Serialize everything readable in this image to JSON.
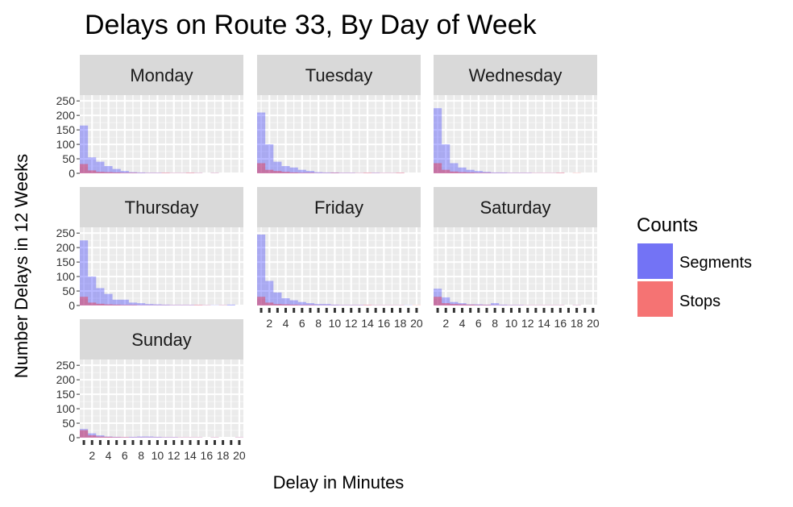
{
  "chart_data": {
    "type": "bar",
    "title": "Delays on Route 33, By Day of Week",
    "xlabel": "Delay in Minutes",
    "ylabel": "Number Delays in 12 Weeks",
    "ylim": [
      0,
      270
    ],
    "y_ticks": [
      0,
      50,
      100,
      150,
      200,
      250
    ],
    "x_ticks": [
      2,
      4,
      6,
      8,
      10,
      12,
      14,
      16,
      18,
      20
    ],
    "x_tick_labels": [
      "2",
      "4",
      "6",
      "8",
      "10",
      "12",
      "14",
      "16",
      "18",
      "20"
    ],
    "bins": [
      1,
      2,
      3,
      4,
      5,
      6,
      7,
      8,
      9,
      10,
      11,
      12,
      13,
      14,
      15,
      16,
      17,
      18,
      19,
      20
    ],
    "grid": true,
    "legend": {
      "title": "Counts",
      "position": "right",
      "entries": [
        {
          "label": "Segments",
          "color": "#7373f5"
        },
        {
          "label": "Stops",
          "color": "#f57373"
        }
      ]
    },
    "series_colors": {
      "Segments": "#0000ff",
      "Stops": "#ff0000"
    },
    "panels": [
      {
        "day": "Monday",
        "segments": [
          165,
          55,
          40,
          25,
          15,
          8,
          4,
          3,
          2,
          2,
          1,
          1,
          1,
          1,
          1,
          0,
          1,
          0,
          0,
          0
        ],
        "stops": [
          32,
          10,
          5,
          4,
          3,
          2,
          2,
          1,
          1,
          1,
          2,
          1,
          1,
          2,
          1,
          0,
          1,
          0,
          0,
          0
        ]
      },
      {
        "day": "Tuesday",
        "segments": [
          210,
          100,
          40,
          25,
          20,
          12,
          8,
          4,
          3,
          3,
          2,
          2,
          1,
          1,
          2,
          1,
          1,
          1,
          0,
          0
        ],
        "stops": [
          35,
          12,
          8,
          5,
          3,
          2,
          2,
          1,
          1,
          2,
          1,
          1,
          1,
          2,
          1,
          1,
          1,
          2,
          0,
          0
        ]
      },
      {
        "day": "Wednesday",
        "segments": [
          225,
          100,
          35,
          20,
          12,
          8,
          5,
          3,
          3,
          2,
          2,
          2,
          1,
          1,
          1,
          1,
          0,
          0,
          0,
          0
        ],
        "stops": [
          35,
          12,
          6,
          4,
          3,
          2,
          2,
          1,
          1,
          1,
          1,
          1,
          1,
          1,
          1,
          2,
          0,
          1,
          0,
          0
        ]
      },
      {
        "day": "Thursday",
        "segments": [
          225,
          100,
          60,
          40,
          20,
          20,
          10,
          8,
          5,
          4,
          3,
          2,
          2,
          2,
          1,
          1,
          1,
          1,
          3,
          0
        ],
        "stops": [
          30,
          10,
          6,
          4,
          3,
          2,
          2,
          1,
          1,
          1,
          1,
          1,
          1,
          1,
          2,
          1,
          0,
          1,
          0,
          0
        ]
      },
      {
        "day": "Friday",
        "segments": [
          245,
          85,
          45,
          25,
          18,
          12,
          8,
          5,
          5,
          3,
          2,
          2,
          2,
          1,
          1,
          1,
          1,
          1,
          1,
          0
        ],
        "stops": [
          30,
          10,
          5,
          4,
          3,
          2,
          2,
          1,
          1,
          1,
          1,
          1,
          1,
          2,
          1,
          1,
          1,
          1,
          0,
          1
        ]
      },
      {
        "day": "Saturday",
        "segments": [
          58,
          28,
          12,
          8,
          4,
          4,
          3,
          8,
          3,
          2,
          2,
          1,
          1,
          1,
          1,
          1,
          0,
          1,
          0,
          0
        ],
        "stops": [
          30,
          8,
          5,
          4,
          3,
          2,
          2,
          1,
          1,
          1,
          1,
          1,
          1,
          1,
          1,
          1,
          0,
          1,
          0,
          0
        ]
      },
      {
        "day": "Sunday",
        "segments": [
          30,
          15,
          8,
          4,
          3,
          2,
          3,
          4,
          4,
          3,
          2,
          2,
          1,
          1,
          1,
          0,
          1,
          0,
          0,
          1
        ],
        "stops": [
          26,
          8,
          4,
          3,
          2,
          2,
          1,
          1,
          1,
          1,
          1,
          1,
          1,
          1,
          1,
          0,
          1,
          0,
          0,
          1
        ]
      }
    ]
  }
}
